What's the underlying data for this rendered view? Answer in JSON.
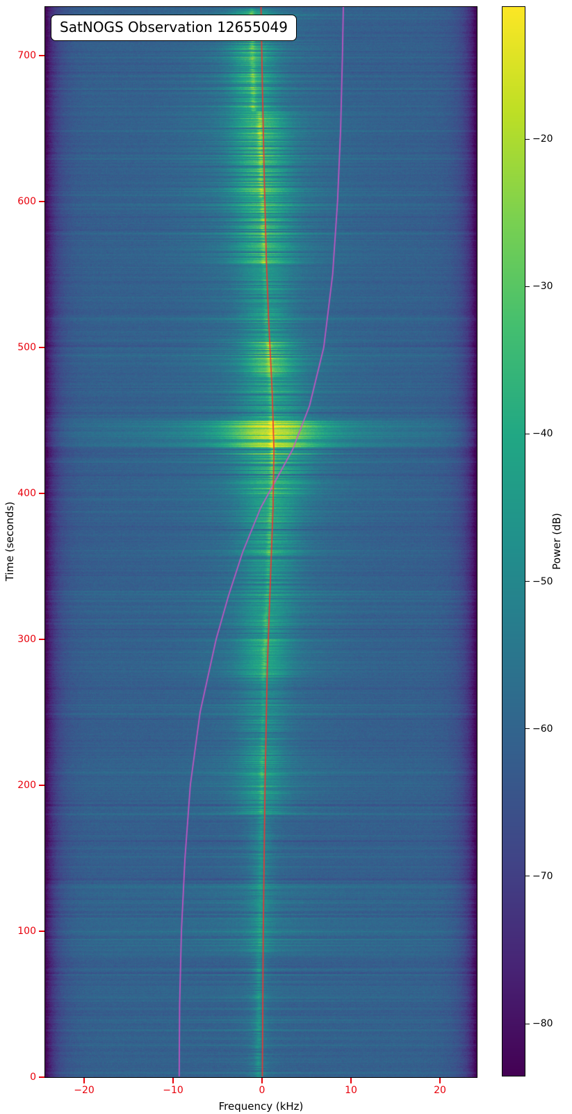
{
  "chart_data": {
    "type": "heatmap",
    "subtype": "satellite-waterfall-spectrogram",
    "title": "SatNOGS Observation 12655049",
    "observation_id": "12655049",
    "xlabel": "Frequency (kHz)",
    "ylabel": "Time (seconds)",
    "colorbar_label": "Power (dB)",
    "xlim": [
      -24.3,
      24.1
    ],
    "ylim": [
      0,
      733
    ],
    "x_ticks": [
      -20,
      -10,
      0,
      10,
      20
    ],
    "y_ticks": [
      0,
      100,
      200,
      300,
      400,
      500,
      600,
      700
    ],
    "colorbar_ticks": [
      -20,
      -30,
      -40,
      -50,
      -60,
      -70,
      -80
    ],
    "power_range_db": [
      -83.5,
      -11.0
    ],
    "colormap": "viridis",
    "tick_color": "#e8000b",
    "legend_position": "none",
    "grid": false,
    "noise_floor_db": -61.5,
    "edge_rolloff_db": -26,
    "viridis_stops": [
      "#440154",
      "#482475",
      "#414487",
      "#355f8d",
      "#2a788e",
      "#21918c",
      "#22a884",
      "#44bf70",
      "#7ad151",
      "#bddf26",
      "#fde725"
    ],
    "doppler_curve": {
      "color": "rgba(204,85,200,0.9)",
      "points": [
        [
          0,
          -9.35
        ],
        [
          50,
          -9.3
        ],
        [
          100,
          -9.1
        ],
        [
          150,
          -8.7
        ],
        [
          200,
          -8.1
        ],
        [
          250,
          -7.0
        ],
        [
          300,
          -5.2
        ],
        [
          330,
          -3.8
        ],
        [
          360,
          -2.2
        ],
        [
          390,
          -0.2
        ],
        [
          410,
          1.6
        ],
        [
          430,
          3.4
        ],
        [
          460,
          5.3
        ],
        [
          500,
          6.9
        ],
        [
          550,
          7.9
        ],
        [
          600,
          8.45
        ],
        [
          650,
          8.8
        ],
        [
          700,
          9.0
        ],
        [
          733,
          9.1
        ]
      ]
    },
    "signal_track": {
      "color": "rgba(230,57,53,0.95)",
      "points": [
        [
          0,
          0.0
        ],
        [
          100,
          0.1
        ],
        [
          200,
          0.3
        ],
        [
          280,
          0.55
        ],
        [
          340,
          0.9
        ],
        [
          390,
          1.2
        ],
        [
          430,
          1.3
        ],
        [
          470,
          1.1
        ],
        [
          520,
          0.7
        ],
        [
          560,
          0.45
        ],
        [
          620,
          0.2
        ],
        [
          680,
          0.0
        ],
        [
          733,
          -0.15
        ]
      ]
    },
    "signal_events": [
      {
        "t0": 0,
        "t1": 85,
        "amp": 6,
        "sigma": 0.6,
        "core": 5,
        "df": -0.3
      },
      {
        "t0": 85,
        "t1": 180,
        "amp": 7,
        "sigma": 0.9,
        "core": 5,
        "df": -0.2
      },
      {
        "t0": 180,
        "t1": 232,
        "amp": 11,
        "sigma": 1.7,
        "core": 7,
        "df": -0.2
      },
      {
        "t0": 232,
        "t1": 272,
        "amp": 9,
        "sigma": 1.8,
        "core": 6,
        "df": -0.2
      },
      {
        "t0": 272,
        "t1": 318,
        "amp": 13,
        "sigma": 1.9,
        "core": 8,
        "df": -0.2
      },
      {
        "t0": 318,
        "t1": 358,
        "amp": 11,
        "sigma": 2.1,
        "core": 7,
        "df": -0.1
      },
      {
        "t0": 358,
        "t1": 397,
        "amp": 14,
        "sigma": 2.2,
        "core": 9,
        "df": -0.1
      },
      {
        "t0": 397,
        "t1": 427,
        "amp": 16,
        "sigma": 2.6,
        "core": 10,
        "df": 0
      },
      {
        "t0": 427,
        "t1": 450,
        "amp": 24,
        "sigma": 3.4,
        "core": 13,
        "df": 0
      },
      {
        "t0": 450,
        "t1": 480,
        "amp": 13,
        "sigma": 2.3,
        "core": 8,
        "df": 0
      },
      {
        "t0": 480,
        "t1": 504,
        "amp": 19,
        "sigma": 1.9,
        "core": 11,
        "df": 0
      },
      {
        "t0": 504,
        "t1": 557,
        "amp": 11,
        "sigma": 1.9,
        "core": 7,
        "df": -0.1
      },
      {
        "t0": 557,
        "t1": 602,
        "amp": 16,
        "sigma": 2.2,
        "core": 10,
        "df": -0.1
      },
      {
        "t0": 602,
        "t1": 662,
        "amp": 18,
        "sigma": 2.1,
        "core": 11,
        "df": -0.2
      },
      {
        "t0": 662,
        "t1": 733,
        "amp": 15,
        "sigma": 1.7,
        "core": 10,
        "df": -0.9
      }
    ],
    "band_events": [
      [
        54,
        66,
        2.5
      ],
      [
        83,
        95,
        3.5
      ],
      [
        97,
        112,
        4
      ],
      [
        114,
        133,
        4
      ],
      [
        205,
        220,
        1.8
      ],
      [
        425,
        431,
        -3
      ],
      [
        432,
        452,
        5
      ],
      [
        489,
        500,
        2.5
      ],
      [
        560,
        570,
        1.5
      ],
      [
        620,
        628,
        -2
      ]
    ]
  }
}
